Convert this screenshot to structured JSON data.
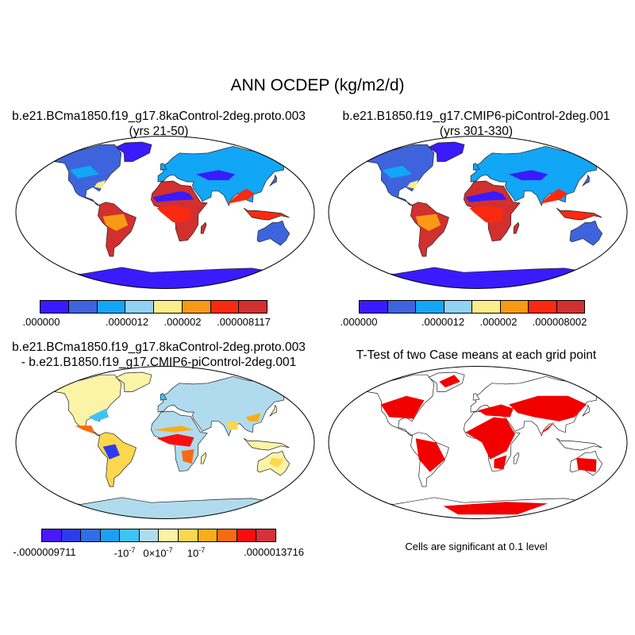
{
  "title": "ANN OCDEP (kg/m2/d)",
  "panels": [
    {
      "title_line1": "b.e21.BCma1850.f19_g17.8kaControl-2deg.proto.003",
      "title_line2": "(yrs 21-50)",
      "colorbar_colors": [
        "#3a1bff",
        "#3e64dd",
        "#12a6f6",
        "#91d2f5",
        "#fbed8a",
        "#f89a14",
        "#f92a10",
        "#d1302f"
      ],
      "colorbar_labels": [
        ".000000",
        ".0000012",
        ".000002",
        ".000008117"
      ]
    },
    {
      "title_line1": "b.e21.B1850.f19_g17.CMIP6-piControl-2deg.001",
      "title_line2": "(yrs 301-330)",
      "colorbar_colors": [
        "#3a1bff",
        "#3e64dd",
        "#12a6f6",
        "#91d2f5",
        "#fbed8a",
        "#f89a14",
        "#f92a10",
        "#d1302f"
      ],
      "colorbar_labels": [
        ".000000",
        ".0000012",
        ".000002",
        ".000008002"
      ]
    },
    {
      "title_line1": "b.e21.BCma1850.f19_g17.8kaControl-2deg.proto.003",
      "title_line2": "- b.e21.B1850.f19_g17.CMIP6-piControl-2deg.001",
      "colorbar_colors": [
        "#4a17ff",
        "#2d3bf0",
        "#2e6ee8",
        "#1aa0f4",
        "#3cc4f7",
        "#b0dbef",
        "#fbf3a6",
        "#fbd74e",
        "#f9ad1b",
        "#f86a12",
        "#f80e0e",
        "#d6303a"
      ],
      "colorbar_labels": [
        "-.0000009711",
        "-10",
        "0×10",
        "10",
        ".0000013716"
      ],
      "colorbar_label_exponents": [
        "",
        "-7",
        "-7",
        "-7",
        ""
      ]
    },
    {
      "title_line1": "T-Test of two Case means at each grid point",
      "significance_color": "#f20000",
      "note": "Cells are significant at 0.1 level"
    }
  ]
}
